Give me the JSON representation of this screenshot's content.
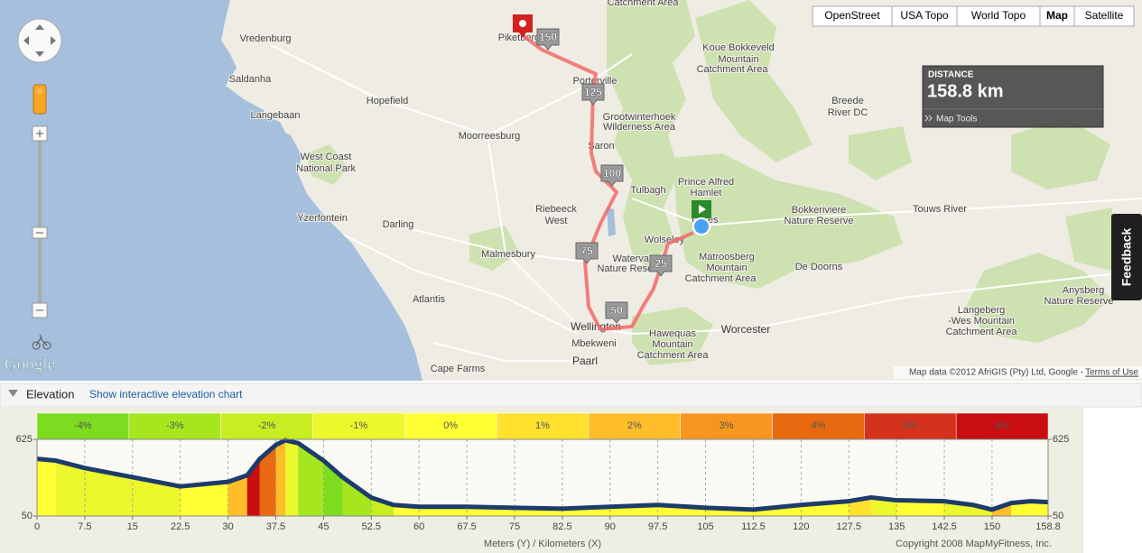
{
  "map": {
    "map_types": [
      "OpenStreet",
      "USA Topo",
      "World Topo",
      "Map",
      "Satellite"
    ],
    "distance_label": "DISTANCE",
    "distance": "158.8 km",
    "map_tools": "Map Tools",
    "feedback": "Feedback",
    "logo": "Google",
    "attribution": "Map data ©2012 AfriGIS (Pty) Ltd, Google - ",
    "terms": "Terms of Use",
    "route_markers": [
      150,
      125,
      100,
      75,
      50,
      25
    ],
    "places": [
      "Vredenburg",
      "Saldanha",
      "Langebaan",
      "Hopefield",
      "Moorreesburg",
      "West Coast",
      "National Park",
      "Yzerfontein",
      "Darling",
      "Riebeeck",
      "West",
      "Malmesbury",
      "Atlantis",
      "Cape Farms",
      "Paarl",
      "Mbekweni",
      "Wellington",
      "Worcester",
      "Hawequas",
      "Mountain",
      "Catchment Area",
      "Piketberg",
      "Porterville",
      "Saron",
      "Grootwinterhoek",
      "Wilderness Area",
      "Tulbagh",
      "Prince Alfred",
      "Hamlet",
      "Ceres",
      "Wolseley",
      "Waterval",
      "Nature Reserve",
      "Matroosberg",
      "Mountain",
      "Catchment Area",
      "De Doorns",
      "Bokkeriviere",
      "Nature Reserve",
      "Touws River",
      "Breede",
      "River DC",
      "Koue Bokkeveld",
      "Mountain",
      "Catchment Area",
      "Catchment Area",
      "Anysberg",
      "Nature Reserve",
      "Langeberg",
      "-Wes Mountain",
      "Catchment Area"
    ]
  },
  "elevation_panel": {
    "title": "Elevation",
    "link": "Show interactive elevation chart"
  },
  "chart_data": {
    "type": "area",
    "x_label": "Meters (Y) / Kilometers (X)",
    "credit": "Copyright 2008 MapMyFitness, Inc.",
    "grade_labels": [
      "-4%",
      "-3%",
      "-2%",
      "-1%",
      "0%",
      "1%",
      "2%",
      "3%",
      "4%",
      "5%",
      "6%"
    ],
    "grade_colors": [
      "#7ddc1f",
      "#a6e61f",
      "#c8ee22",
      "#ecf72c",
      "#ffff33",
      "#ffe12e",
      "#ffbd2a",
      "#f7961f",
      "#e8690f",
      "#d4321c",
      "#c80e10"
    ],
    "line_color": "#1d3b6b",
    "x": [
      0,
      3,
      7.5,
      15,
      22.5,
      30,
      33,
      35,
      37.5,
      39,
      41,
      45,
      48,
      52.5,
      56,
      60,
      67.5,
      75,
      82.5,
      90,
      97.5,
      105,
      112.5,
      120,
      127.5,
      131,
      135,
      142.5,
      147,
      150,
      153,
      156,
      158.8
    ],
    "values": [
      479,
      465,
      410,
      341,
      272,
      306,
      355,
      479,
      583,
      618,
      597,
      466,
      341,
      188,
      133,
      119,
      119,
      112,
      105,
      119,
      133,
      112,
      98,
      133,
      161,
      189,
      168,
      161,
      133,
      98,
      147,
      161,
      154
    ],
    "xlim": [
      0,
      158.8
    ],
    "ylim": [
      50,
      625
    ],
    "xticks": [
      0,
      7.5,
      15,
      22.5,
      30,
      37.5,
      45,
      52.5,
      60,
      67.5,
      75,
      82.5,
      90,
      97.5,
      105,
      112.5,
      120,
      127.5,
      135,
      142.5,
      150,
      158.8
    ],
    "yticks": [
      50,
      625
    ],
    "grid": true
  }
}
